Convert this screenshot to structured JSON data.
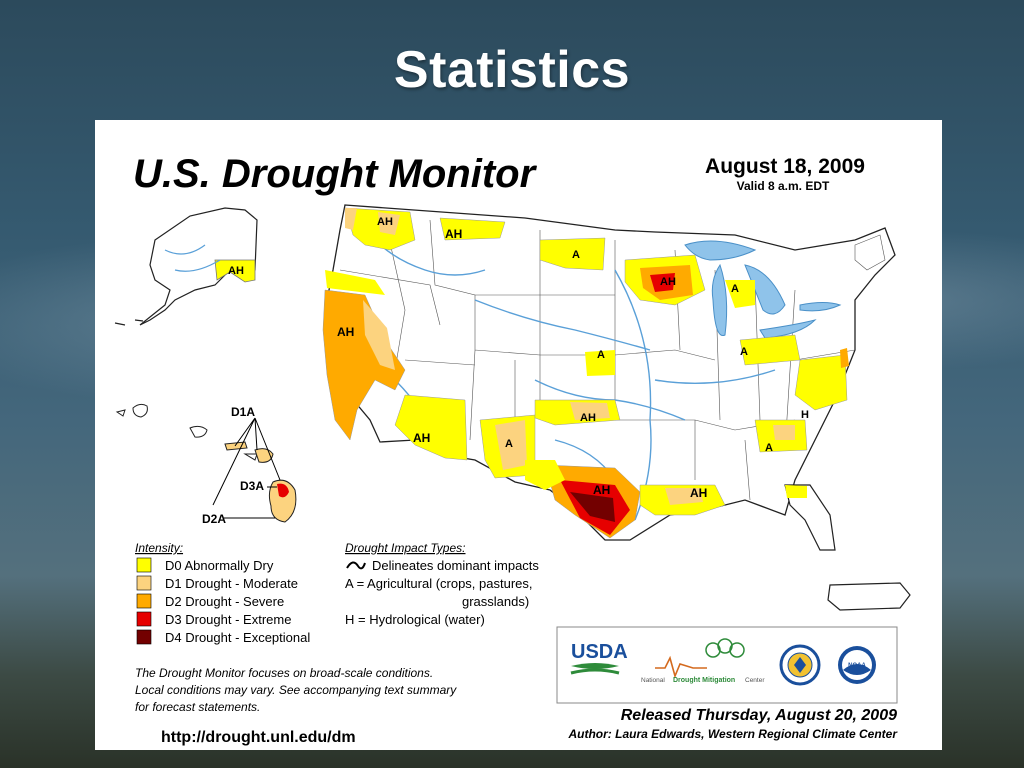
{
  "slide": {
    "title": "Statistics"
  },
  "map": {
    "title": "U.S. Drought Monitor",
    "date": "August 18, 2009",
    "valid": "Valid 8 a.m. EDT",
    "region_labels": {
      "ah_wa": "AH",
      "ah_mt": "AH",
      "a_nd": "A",
      "ah_mn": "AH",
      "a_mi": "A",
      "ah_ca": "AH",
      "a_ks": "A",
      "a_oh": "A",
      "ah_ok": "AH",
      "a_nm": "A",
      "ah_az": "AH",
      "ah_tx": "AH",
      "ah_la": "AH",
      "h_va": "H",
      "a_sc": "A",
      "ah_ak": "AH",
      "d1a": "D1A",
      "d3a": "D3A",
      "d2a": "D2A"
    },
    "intensity": {
      "heading": "Intensity:",
      "items": [
        {
          "label": "D0 Abnormally Dry",
          "color": "#ffff00"
        },
        {
          "label": "D1 Drought - Moderate",
          "color": "#fcd37f"
        },
        {
          "label": "D2 Drought - Severe",
          "color": "#ffaa00"
        },
        {
          "label": "D3 Drought - Extreme",
          "color": "#e60000"
        },
        {
          "label": "D4 Drought - Exceptional",
          "color": "#730000"
        }
      ]
    },
    "impact": {
      "heading": "Drought Impact Types:",
      "line1": "Delineates dominant impacts",
      "line2": "A = Agricultural (crops, pastures,",
      "line3": "grasslands)",
      "line4": "H = Hydrological (water)"
    },
    "note": {
      "line1": "The Drought Monitor focuses on broad-scale conditions.",
      "line2": "Local conditions may vary. See accompanying text summary",
      "line3": "for forecast statements."
    },
    "url": "http://drought.unl.edu/dm",
    "logos": {
      "usda": "USDA",
      "ndmc_prefix": "National",
      "ndmc_name": "Drought Mitigation",
      "ndmc_suffix": "Center",
      "noaa": "NOAA"
    },
    "released": "Released Thursday, August 20, 2009",
    "author": "Author: Laura Edwards, Western Regional Climate Center"
  }
}
